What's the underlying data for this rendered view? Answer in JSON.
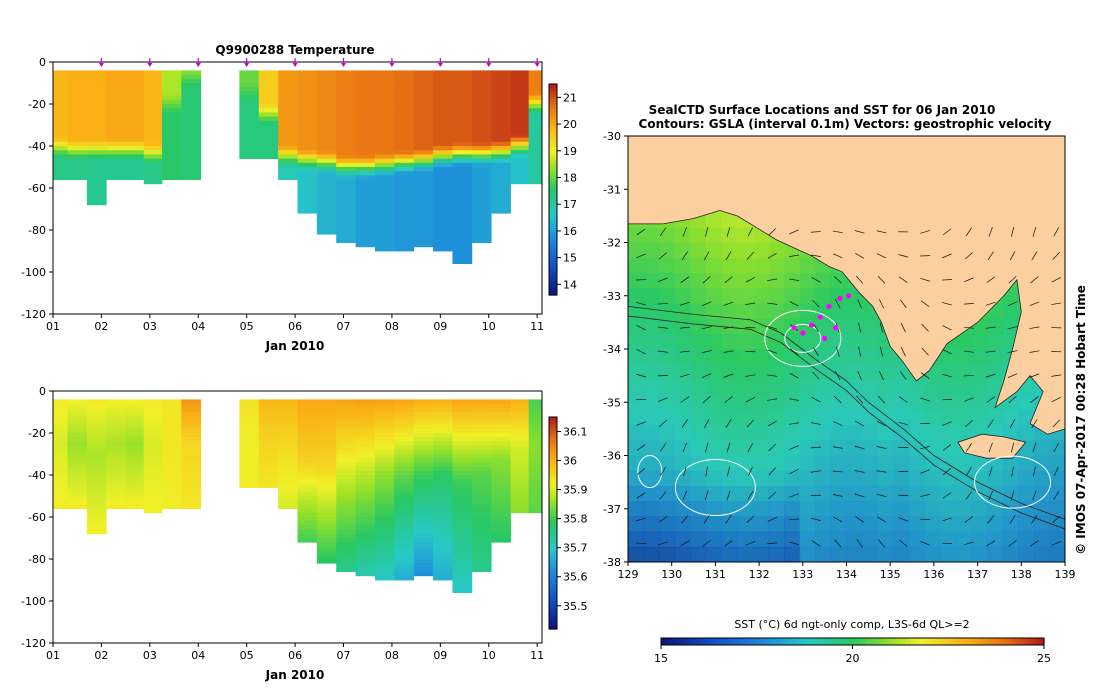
{
  "chart_data": [
    {
      "type": "heatmap",
      "title": "Q9900288  Temperature",
      "xlabel": "Jan 2010",
      "x_ticks": [
        "01",
        "02",
        "03",
        "04",
        "05",
        "06",
        "07",
        "08",
        "09",
        "10",
        "11"
      ],
      "x_range": [
        1,
        11.1
      ],
      "ylim": [
        -120,
        0
      ],
      "y_ticks": [
        0,
        -20,
        -40,
        -60,
        -80,
        -100,
        -120
      ],
      "colorbar": {
        "min": 13.6,
        "max": 21.5,
        "ticks": [
          14,
          15,
          16,
          17,
          18,
          19,
          20,
          21
        ]
      },
      "profile_markers": [
        2,
        3,
        4,
        5,
        6,
        7,
        8,
        9,
        10,
        11
      ],
      "data_gap": [
        4.0,
        5.0
      ],
      "grid": false,
      "profiles": [
        {
          "t": 1.1,
          "bottom": -55,
          "surface": 19.8,
          "thermocline": -41,
          "deep": 17.2
        },
        {
          "t": 1.5,
          "bottom": -55,
          "surface": 19.9,
          "thermocline": -42,
          "deep": 17.2
        },
        {
          "t": 1.9,
          "bottom": -68,
          "surface": 19.9,
          "thermocline": -42,
          "deep": 17.1
        },
        {
          "t": 2.3,
          "bottom": -55,
          "surface": 20.0,
          "thermocline": -42,
          "deep": 17.1
        },
        {
          "t": 2.7,
          "bottom": -56,
          "surface": 20.0,
          "thermocline": -42,
          "deep": 17.1
        },
        {
          "t": 3.05,
          "bottom": -58,
          "surface": 19.8,
          "thermocline": -44,
          "deep": 17.2
        },
        {
          "t": 3.45,
          "bottom": -55,
          "surface": 18.5,
          "thermocline": -20,
          "deep": 17.5
        },
        {
          "t": 3.85,
          "bottom": -55,
          "surface": 18.3,
          "thermocline": -8,
          "deep": 17.4
        },
        {
          "t": 5.05,
          "bottom": -45,
          "surface": 18.0,
          "thermocline": -15,
          "deep": 17.3
        },
        {
          "t": 5.45,
          "bottom": -45,
          "surface": 19.5,
          "thermocline": -25,
          "deep": 17.3
        },
        {
          "t": 5.85,
          "bottom": -55,
          "surface": 20.2,
          "thermocline": -45,
          "deep": 16.8
        },
        {
          "t": 6.25,
          "bottom": -72,
          "surface": 20.3,
          "thermocline": -47,
          "deep": 16.5
        },
        {
          "t": 6.65,
          "bottom": -82,
          "surface": 20.4,
          "thermocline": -48,
          "deep": 16.3
        },
        {
          "t": 7.05,
          "bottom": -85,
          "surface": 20.5,
          "thermocline": -50,
          "deep": 16.2
        },
        {
          "t": 7.45,
          "bottom": -88,
          "surface": 20.6,
          "thermocline": -50,
          "deep": 16.0
        },
        {
          "t": 7.85,
          "bottom": -90,
          "surface": 20.6,
          "thermocline": -49,
          "deep": 16.0
        },
        {
          "t": 8.25,
          "bottom": -90,
          "surface": 20.7,
          "thermocline": -48,
          "deep": 15.9
        },
        {
          "t": 8.65,
          "bottom": -88,
          "surface": 20.8,
          "thermocline": -47,
          "deep": 15.9
        },
        {
          "t": 9.05,
          "bottom": -90,
          "surface": 20.9,
          "thermocline": -45,
          "deep": 15.8
        },
        {
          "t": 9.45,
          "bottom": -95,
          "surface": 20.9,
          "thermocline": -44,
          "deep": 15.8
        },
        {
          "t": 9.85,
          "bottom": -85,
          "surface": 21.0,
          "thermocline": -44,
          "deep": 16.0
        },
        {
          "t": 10.25,
          "bottom": -72,
          "surface": 21.1,
          "thermocline": -43,
          "deep": 16.2
        },
        {
          "t": 10.65,
          "bottom": -58,
          "surface": 21.2,
          "thermocline": -40,
          "deep": 16.5
        },
        {
          "t": 11.0,
          "bottom": -58,
          "surface": 20.5,
          "thermocline": -20,
          "deep": 17.0
        }
      ]
    },
    {
      "type": "heatmap",
      "title": "",
      "xlabel": "Jan 2010",
      "x_ticks": [
        "01",
        "02",
        "03",
        "04",
        "05",
        "06",
        "07",
        "08",
        "09",
        "10",
        "11"
      ],
      "x_range": [
        1,
        11.1
      ],
      "ylim": [
        -120,
        0
      ],
      "y_ticks": [
        0,
        -20,
        -40,
        -60,
        -80,
        -100,
        -120
      ],
      "colorbar": {
        "min": 35.42,
        "max": 36.15,
        "ticks": [
          35.5,
          35.6,
          35.7,
          35.8,
          35.9,
          36,
          36.1
        ]
      },
      "data_gap": [
        4.0,
        5.0
      ],
      "grid": false,
      "profiles": [
        {
          "t": 1.1,
          "bottom": -55,
          "surface": 35.93,
          "mid": 35.9,
          "deep": 35.92
        },
        {
          "t": 1.5,
          "bottom": -55,
          "surface": 35.93,
          "mid": 35.86,
          "deep": 35.92
        },
        {
          "t": 1.9,
          "bottom": -68,
          "surface": 35.93,
          "mid": 35.87,
          "deep": 35.92
        },
        {
          "t": 2.3,
          "bottom": -55,
          "surface": 35.93,
          "mid": 35.87,
          "deep": 35.92
        },
        {
          "t": 2.7,
          "bottom": -56,
          "surface": 35.93,
          "mid": 35.86,
          "deep": 35.92
        },
        {
          "t": 3.05,
          "bottom": -58,
          "surface": 35.93,
          "mid": 35.9,
          "deep": 35.92
        },
        {
          "t": 3.45,
          "bottom": -55,
          "surface": 35.93,
          "mid": 35.93,
          "deep": 35.92
        },
        {
          "t": 3.85,
          "bottom": -55,
          "surface": 36.05,
          "mid": 35.95,
          "deep": 35.93
        },
        {
          "t": 5.05,
          "bottom": -45,
          "surface": 35.94,
          "mid": 35.92,
          "deep": 35.92
        },
        {
          "t": 5.45,
          "bottom": -45,
          "surface": 36.0,
          "mid": 35.96,
          "deep": 35.93
        },
        {
          "t": 5.85,
          "bottom": -55,
          "surface": 36.0,
          "mid": 35.95,
          "deep": 35.9
        },
        {
          "t": 6.25,
          "bottom": -72,
          "surface": 36.02,
          "mid": 35.96,
          "deep": 35.8
        },
        {
          "t": 6.65,
          "bottom": -82,
          "surface": 36.02,
          "mid": 35.95,
          "deep": 35.78
        },
        {
          "t": 7.05,
          "bottom": -85,
          "surface": 36.03,
          "mid": 35.9,
          "deep": 35.75
        },
        {
          "t": 7.45,
          "bottom": -88,
          "surface": 36.04,
          "mid": 35.88,
          "deep": 35.72
        },
        {
          "t": 7.85,
          "bottom": -90,
          "surface": 36.04,
          "mid": 35.85,
          "deep": 35.7
        },
        {
          "t": 8.25,
          "bottom": -90,
          "surface": 36.04,
          "mid": 35.82,
          "deep": 35.66
        },
        {
          "t": 8.65,
          "bottom": -88,
          "surface": 36.03,
          "mid": 35.8,
          "deep": 35.62
        },
        {
          "t": 9.05,
          "bottom": -90,
          "surface": 36.03,
          "mid": 35.78,
          "deep": 35.66
        },
        {
          "t": 9.45,
          "bottom": -95,
          "surface": 36.04,
          "mid": 35.8,
          "deep": 35.7
        },
        {
          "t": 9.85,
          "bottom": -85,
          "surface": 36.04,
          "mid": 35.82,
          "deep": 35.75
        },
        {
          "t": 10.25,
          "bottom": -72,
          "surface": 36.04,
          "mid": 35.85,
          "deep": 35.78
        },
        {
          "t": 10.65,
          "bottom": -58,
          "surface": 36.02,
          "mid": 35.9,
          "deep": 35.85
        },
        {
          "t": 11.0,
          "bottom": -58,
          "surface": 35.8,
          "mid": 35.85,
          "deep": 35.82
        }
      ]
    },
    {
      "type": "heatmap",
      "title": "SealCTD Surface Locations and SST for 06 Jan 2010",
      "subtitle": "Contours: GSLA (interval 0.1m) Vectors: geostrophic velocity",
      "x_ticks": [
        "129",
        "130",
        "131",
        "132",
        "133",
        "134",
        "135",
        "136",
        "137",
        "138",
        "139"
      ],
      "y_ticks": [
        "-30",
        "-31",
        "-32",
        "-33",
        "-34",
        "-35",
        "-36",
        "-37",
        "-38"
      ],
      "lon_range": [
        129,
        139
      ],
      "lat_range": [
        -38,
        -30
      ],
      "colorbar": {
        "label": "SST (°C) 6d ngt-only comp, L3S-6d QL>=2",
        "min": 15,
        "max": 25,
        "ticks": [
          15,
          20,
          25
        ]
      },
      "seal_locations": [
        [
          132.8,
          -33.6
        ],
        [
          133.0,
          -33.7
        ],
        [
          133.2,
          -33.55
        ],
        [
          133.4,
          -33.4
        ],
        [
          133.6,
          -33.2
        ],
        [
          133.75,
          -33.6
        ],
        [
          133.85,
          -33.05
        ],
        [
          134.05,
          -33.0
        ],
        [
          133.5,
          -33.8
        ]
      ],
      "colors": {
        "land": "#fccfa0",
        "marker": "#ff00ff",
        "contour": "#ffffff",
        "coast": "#222222"
      }
    }
  ],
  "figure": {
    "credit": "© IMOS 07-Apr-2017 00:28 Hobart Time",
    "marker_color": "#cc00cc"
  }
}
